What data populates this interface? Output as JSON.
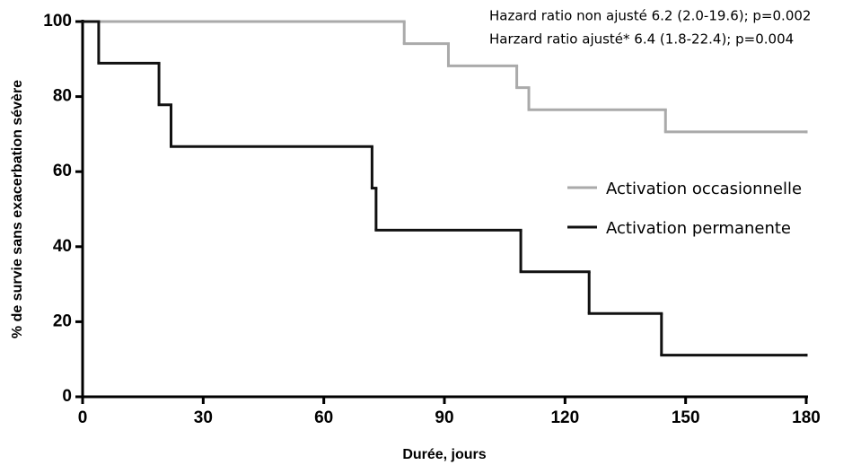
{
  "chart_data": {
    "type": "step",
    "x_label": "Durée, jours",
    "y_label": "% de survie sans exacerbation sévère",
    "annotations": [
      "Hazard ratio non ajusté 6.2 (2.0-19.6); p=0.002",
      "Harzard ratio ajusté* 6.4 (1.8-22.4); p=0.004"
    ],
    "xlim": [
      0,
      180
    ],
    "xticks": [
      0,
      30,
      60,
      90,
      120,
      150,
      180
    ],
    "ylim": [
      0,
      100
    ],
    "yticks": [
      0,
      20,
      40,
      60,
      80,
      100
    ],
    "series": [
      {
        "name": "Activation occasionnelle",
        "color": "#aaaaaa",
        "x": [
          0,
          80,
          91,
          108,
          111,
          145,
          180
        ],
        "values": [
          100,
          94.1,
          88.2,
          82.4,
          76.5,
          70.6,
          70.6
        ]
      },
      {
        "name": "Activation permanente",
        "color": "#111111",
        "x": [
          0,
          4,
          19,
          22,
          72,
          73,
          109,
          126,
          144,
          180
        ],
        "values": [
          100,
          88.9,
          77.8,
          66.7,
          55.6,
          44.4,
          33.3,
          22.2,
          11.1,
          11.1
        ]
      }
    ]
  }
}
